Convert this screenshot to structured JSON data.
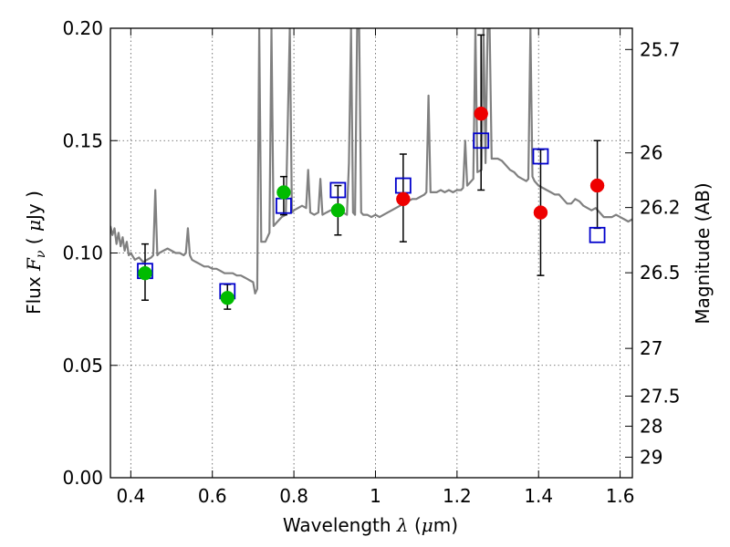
{
  "chart_data": {
    "type": "scatter",
    "title": "",
    "xlabel": {
      "prefix": "Wavelength  ",
      "symbol": "λ",
      "unit_open": " (",
      "unit_sym": "μ",
      "unit_close": "m)"
    },
    "ylabel": {
      "prefix": "Flux  ",
      "symbol": "F",
      "sub": "ν",
      "unit_open": "  ( ",
      "unit_sym": "μ",
      "unit_close": "Jy )"
    },
    "y2label": "Magnitude (AB)",
    "xlim": [
      0.35,
      1.63
    ],
    "ylim": [
      0.0,
      0.2
    ],
    "grid": true,
    "x_ticks": [
      {
        "v": 0.4,
        "label": "0.4"
      },
      {
        "v": 0.6,
        "label": "0.6"
      },
      {
        "v": 0.8,
        "label": "0.8"
      },
      {
        "v": 1.0,
        "label": "1"
      },
      {
        "v": 1.2,
        "label": "1.2"
      },
      {
        "v": 1.4,
        "label": "1.4"
      },
      {
        "v": 1.6,
        "label": "1.6"
      }
    ],
    "y_ticks": [
      {
        "v": 0.0,
        "label": "0.00"
      },
      {
        "v": 0.05,
        "label": "0.05"
      },
      {
        "v": 0.1,
        "label": "0.10"
      },
      {
        "v": 0.15,
        "label": "0.15"
      },
      {
        "v": 0.2,
        "label": "0.20"
      }
    ],
    "mag_ticks": [
      {
        "mag": 25.7,
        "label": "25.7"
      },
      {
        "mag": 26.0,
        "label": "26"
      },
      {
        "mag": 26.2,
        "label": "26.2"
      },
      {
        "mag": 26.5,
        "label": "26.5"
      },
      {
        "mag": 27.0,
        "label": "27"
      },
      {
        "mag": 27.5,
        "label": "27.5"
      },
      {
        "mag": 28.0,
        "label": "28"
      },
      {
        "mag": 29.0,
        "label": "29"
      }
    ],
    "series": [
      {
        "kind": "spectrum",
        "color": "#808080",
        "points": [
          [
            0.35,
            0.112
          ],
          [
            0.355,
            0.108
          ],
          [
            0.36,
            0.111
          ],
          [
            0.365,
            0.104
          ],
          [
            0.37,
            0.109
          ],
          [
            0.375,
            0.103
          ],
          [
            0.38,
            0.107
          ],
          [
            0.385,
            0.101
          ],
          [
            0.39,
            0.105
          ],
          [
            0.395,
            0.099
          ],
          [
            0.4,
            0.1
          ],
          [
            0.41,
            0.097
          ],
          [
            0.42,
            0.098
          ],
          [
            0.43,
            0.096
          ],
          [
            0.44,
            0.097
          ],
          [
            0.45,
            0.098
          ],
          [
            0.455,
            0.099
          ],
          [
            0.46,
            0.128
          ],
          [
            0.465,
            0.099
          ],
          [
            0.47,
            0.1
          ],
          [
            0.48,
            0.101
          ],
          [
            0.49,
            0.102
          ],
          [
            0.5,
            0.101
          ],
          [
            0.51,
            0.1
          ],
          [
            0.52,
            0.1
          ],
          [
            0.53,
            0.099
          ],
          [
            0.535,
            0.1
          ],
          [
            0.54,
            0.111
          ],
          [
            0.545,
            0.099
          ],
          [
            0.55,
            0.097
          ],
          [
            0.56,
            0.096
          ],
          [
            0.57,
            0.095
          ],
          [
            0.58,
            0.094
          ],
          [
            0.59,
            0.094
          ],
          [
            0.6,
            0.093
          ],
          [
            0.61,
            0.093
          ],
          [
            0.62,
            0.092
          ],
          [
            0.63,
            0.091
          ],
          [
            0.64,
            0.091
          ],
          [
            0.65,
            0.091
          ],
          [
            0.66,
            0.09
          ],
          [
            0.67,
            0.09
          ],
          [
            0.68,
            0.089
          ],
          [
            0.69,
            0.088
          ],
          [
            0.7,
            0.087
          ],
          [
            0.705,
            0.082
          ],
          [
            0.71,
            0.084
          ],
          [
            0.715,
            0.2
          ],
          [
            0.72,
            0.105
          ],
          [
            0.73,
            0.105
          ],
          [
            0.74,
            0.109
          ],
          [
            0.745,
            0.2
          ],
          [
            0.75,
            0.112
          ],
          [
            0.76,
            0.114
          ],
          [
            0.77,
            0.116
          ],
          [
            0.78,
            0.117
          ],
          [
            0.79,
            0.2
          ],
          [
            0.795,
            0.118
          ],
          [
            0.8,
            0.119
          ],
          [
            0.81,
            0.12
          ],
          [
            0.82,
            0.121
          ],
          [
            0.83,
            0.12
          ],
          [
            0.835,
            0.137
          ],
          [
            0.84,
            0.118
          ],
          [
            0.85,
            0.117
          ],
          [
            0.86,
            0.118
          ],
          [
            0.865,
            0.133
          ],
          [
            0.87,
            0.117
          ],
          [
            0.88,
            0.118
          ],
          [
            0.89,
            0.119
          ],
          [
            0.9,
            0.119
          ],
          [
            0.91,
            0.118
          ],
          [
            0.92,
            0.118
          ],
          [
            0.93,
            0.117
          ],
          [
            0.935,
            0.14
          ],
          [
            0.94,
            0.2
          ],
          [
            0.945,
            0.118
          ],
          [
            0.95,
            0.117
          ],
          [
            0.955,
            0.2
          ],
          [
            0.96,
            0.2
          ],
          [
            0.965,
            0.118
          ],
          [
            0.97,
            0.117
          ],
          [
            0.98,
            0.117
          ],
          [
            0.99,
            0.116
          ],
          [
            1.0,
            0.117
          ],
          [
            1.01,
            0.116
          ],
          [
            1.02,
            0.117
          ],
          [
            1.03,
            0.118
          ],
          [
            1.04,
            0.119
          ],
          [
            1.05,
            0.12
          ],
          [
            1.06,
            0.121
          ],
          [
            1.07,
            0.122
          ],
          [
            1.08,
            0.123
          ],
          [
            1.09,
            0.124
          ],
          [
            1.1,
            0.124
          ],
          [
            1.11,
            0.125
          ],
          [
            1.12,
            0.126
          ],
          [
            1.125,
            0.127
          ],
          [
            1.13,
            0.17
          ],
          [
            1.135,
            0.127
          ],
          [
            1.14,
            0.127
          ],
          [
            1.15,
            0.127
          ],
          [
            1.16,
            0.128
          ],
          [
            1.17,
            0.127
          ],
          [
            1.18,
            0.128
          ],
          [
            1.19,
            0.127
          ],
          [
            1.2,
            0.128
          ],
          [
            1.21,
            0.128
          ],
          [
            1.215,
            0.129
          ],
          [
            1.22,
            0.15
          ],
          [
            1.225,
            0.13
          ],
          [
            1.23,
            0.131
          ],
          [
            1.24,
            0.133
          ],
          [
            1.245,
            0.2
          ],
          [
            1.25,
            0.136
          ],
          [
            1.26,
            0.137
          ],
          [
            1.265,
            0.2
          ],
          [
            1.27,
            0.14
          ],
          [
            1.275,
            0.2
          ],
          [
            1.28,
            0.2
          ],
          [
            1.285,
            0.142
          ],
          [
            1.29,
            0.142
          ],
          [
            1.3,
            0.142
          ],
          [
            1.31,
            0.141
          ],
          [
            1.32,
            0.139
          ],
          [
            1.33,
            0.137
          ],
          [
            1.34,
            0.136
          ],
          [
            1.35,
            0.134
          ],
          [
            1.36,
            0.133
          ],
          [
            1.37,
            0.132
          ],
          [
            1.375,
            0.133
          ],
          [
            1.38,
            0.2
          ],
          [
            1.385,
            0.134
          ],
          [
            1.39,
            0.132
          ],
          [
            1.4,
            0.13
          ],
          [
            1.41,
            0.129
          ],
          [
            1.42,
            0.128
          ],
          [
            1.43,
            0.127
          ],
          [
            1.44,
            0.126
          ],
          [
            1.45,
            0.126
          ],
          [
            1.46,
            0.124
          ],
          [
            1.47,
            0.122
          ],
          [
            1.48,
            0.122
          ],
          [
            1.49,
            0.124
          ],
          [
            1.5,
            0.123
          ],
          [
            1.51,
            0.121
          ],
          [
            1.52,
            0.12
          ],
          [
            1.53,
            0.119
          ],
          [
            1.54,
            0.12
          ],
          [
            1.55,
            0.118
          ],
          [
            1.56,
            0.116
          ],
          [
            1.57,
            0.116
          ],
          [
            1.58,
            0.116
          ],
          [
            1.59,
            0.117
          ],
          [
            1.6,
            0.116
          ],
          [
            1.61,
            0.115
          ],
          [
            1.62,
            0.114
          ],
          [
            1.63,
            0.115
          ]
        ]
      },
      {
        "kind": "model-squares",
        "color": "#0000cc",
        "points": [
          [
            0.435,
            0.092
          ],
          [
            0.637,
            0.083
          ],
          [
            0.775,
            0.121
          ],
          [
            0.908,
            0.128
          ],
          [
            1.068,
            0.13
          ],
          [
            1.259,
            0.15
          ],
          [
            1.405,
            0.143
          ],
          [
            1.544,
            0.108
          ]
        ]
      },
      {
        "kind": "observed-green",
        "color": "#00bb00",
        "points": [
          {
            "x": 0.435,
            "y": 0.091,
            "err": [
              0.079,
              0.104
            ]
          },
          {
            "x": 0.637,
            "y": 0.08,
            "err": [
              0.075,
              0.086
            ]
          },
          {
            "x": 0.775,
            "y": 0.127,
            "err": [
              0.117,
              0.134
            ]
          },
          {
            "x": 0.908,
            "y": 0.119,
            "err": [
              0.108,
              0.13
            ]
          }
        ]
      },
      {
        "kind": "observed-red",
        "color": "#ee0000",
        "points": [
          {
            "x": 1.068,
            "y": 0.124,
            "err": [
              0.105,
              0.144
            ]
          },
          {
            "x": 1.259,
            "y": 0.162,
            "err": [
              0.128,
              0.197
            ]
          },
          {
            "x": 1.405,
            "y": 0.118,
            "err": [
              0.09,
              0.146
            ]
          },
          {
            "x": 1.544,
            "y": 0.13,
            "err": [
              0.111,
              0.15
            ]
          }
        ]
      }
    ]
  }
}
